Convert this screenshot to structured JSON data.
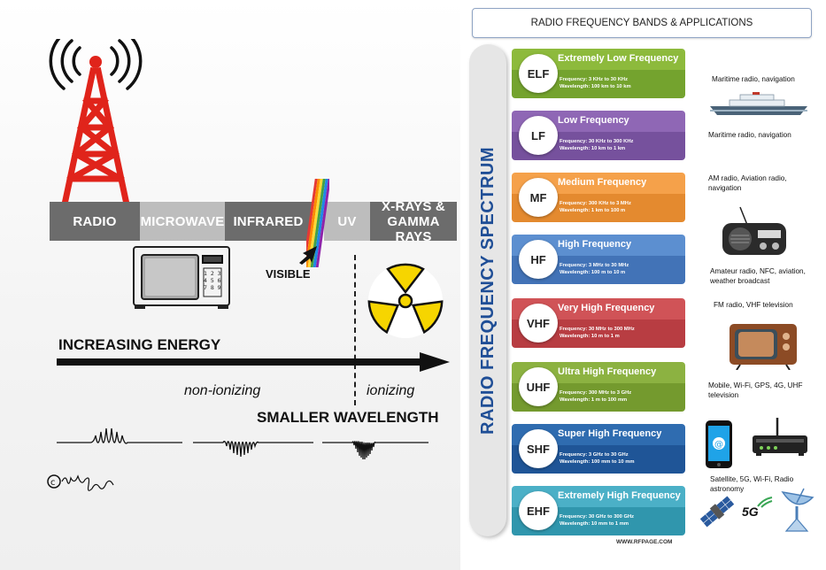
{
  "left": {
    "spectrum": [
      "RADIO",
      "MICROWAVE",
      "INFRARED",
      "UV",
      "X-RAYS &",
      "GAMMA RAYS"
    ],
    "visible_label": "VISIBLE",
    "energy_label": "INCREASING ENERGY",
    "nonionizing_label": "non-ionizing",
    "ionizing_label": "ionizing",
    "wavelength_label": "SMALLER WAVELENGTH",
    "microwave_keypad": [
      "1 2 3",
      "4 5 6",
      "7 8 9"
    ]
  },
  "right": {
    "title": "RADIO FREQUENCY BANDS  & APPLICATIONS",
    "spine_title": "RADIO FREQUENCY SPECTRUM",
    "credit": "WWW.RFPAGE.COM",
    "bands": [
      {
        "abbr": "ELF",
        "name": "Extremely Low Frequency",
        "freq": "Frequency:    3 KHz to 30 KHz",
        "wave": "Wavelength:  100 km to 10 km",
        "top": "#8dba3c",
        "bot": "#74a32e"
      },
      {
        "abbr": "LF",
        "name": "Low Frequency",
        "freq": "Frequency:    30 KHz to 300 KHz",
        "wave": "Wavelength:  10 km to 1 km",
        "top": "#8f67b5",
        "bot": "#76519d"
      },
      {
        "abbr": "MF",
        "name": "Medium Frequency",
        "freq": "Frequency:    300 KHz to 3 MHz",
        "wave": "Wavelength:  1 km to 100 m",
        "top": "#f5a14a",
        "bot": "#e48a2f"
      },
      {
        "abbr": "HF",
        "name": "High Frequency",
        "freq": "Frequency:    3 MHz to 30 MHz",
        "wave": "Wavelength:  100 m to 10 m",
        "top": "#5c8fd0",
        "bot": "#4273b7"
      },
      {
        "abbr": "VHF",
        "name": "Very High Frequency",
        "freq": "Frequency:    30 MHz to 300 MHz",
        "wave": "Wavelength:  10 m to 1 m",
        "top": "#d05357",
        "bot": "#b83d42"
      },
      {
        "abbr": "UHF",
        "name": "Ultra High Frequency",
        "freq": "Frequency:    300 MHz to 3 GHz",
        "wave": "Wavelength:  1 m to 100 mm",
        "top": "#8cb241",
        "bot": "#749a2e"
      },
      {
        "abbr": "SHF",
        "name": "Super High Frequency",
        "freq": "Frequency:    3 GHz to 30 GHz",
        "wave": "Wavelength:  100 mm to 10 mm",
        "top": "#2f6cb0",
        "bot": "#1f5597"
      },
      {
        "abbr": "EHF",
        "name": "Extremely High Frequency",
        "freq": "Frequency:    30 GHz to 300 GHz",
        "wave": "Wavelength:  10 mm to 1 mm",
        "top": "#4bb0c7",
        "bot": "#3096ad"
      }
    ],
    "apps": [
      "Maritime radio, navigation",
      "Maritime radio, navigation",
      "AM radio, Aviation radio, navigation",
      "Amateur radio, NFC, aviation, weather broadcast",
      "FM radio, VHF television",
      "Mobile, Wi-Fi,  GPS, 4G, UHF television",
      "Satellite, 5G, Wi-Fi, Radio astronomy"
    ],
    "fiveg": "5G"
  }
}
